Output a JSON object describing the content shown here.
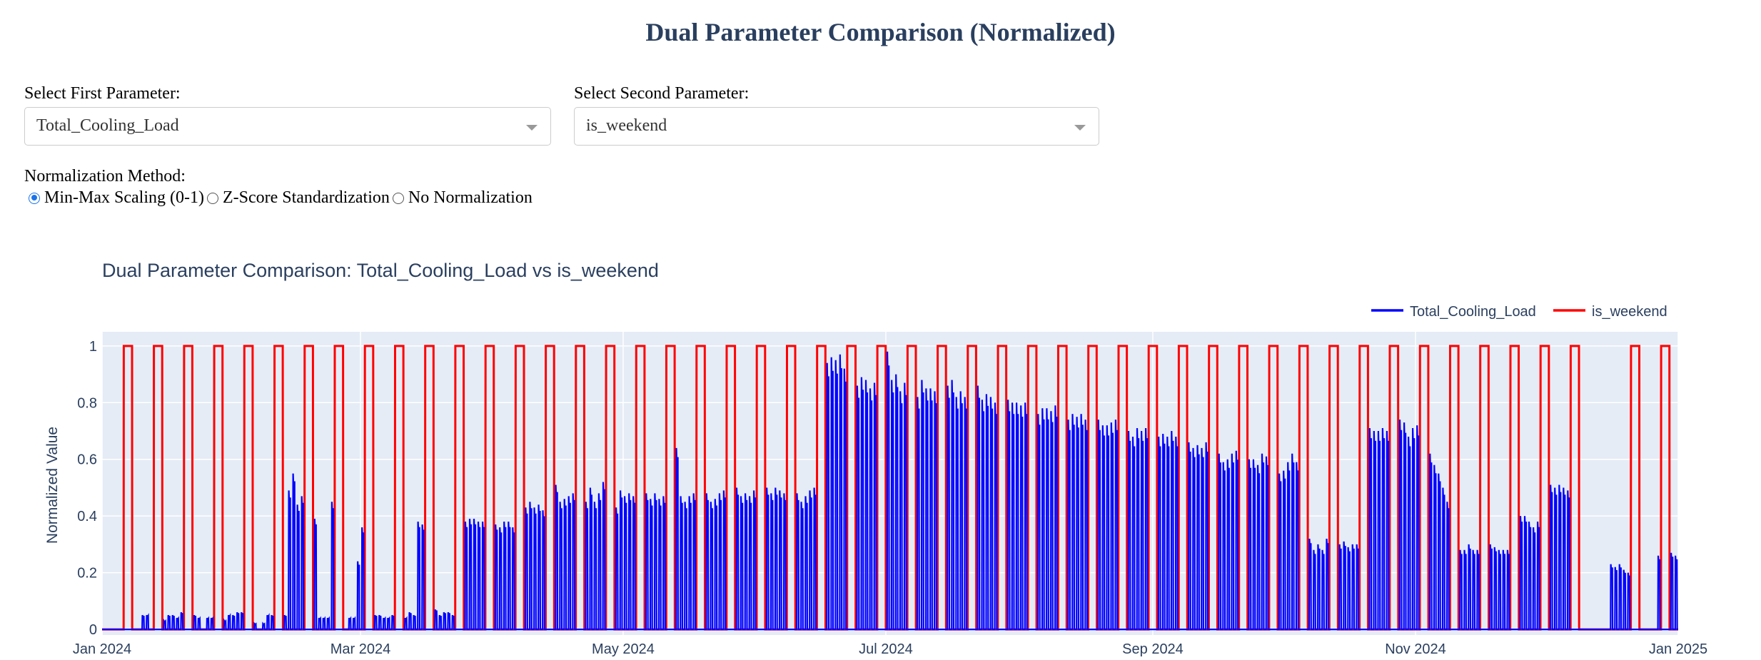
{
  "page": {
    "title": "Dual Parameter Comparison (Normalized)"
  },
  "controls": {
    "first_label": "Select First Parameter:",
    "first_value": "Total_Cooling_Load",
    "second_label": "Select Second Parameter:",
    "second_value": "is_weekend",
    "norm_label": "Normalization Method:",
    "norm_options": [
      "Min-Max Scaling (0-1)",
      "Z-Score Standardization",
      "No Normalization"
    ],
    "norm_selected": "Min-Max Scaling (0-1)"
  },
  "colors": {
    "series1": "#0000ff",
    "series2": "#ff0000",
    "plot_bg": "#e5ecf6",
    "grid": "#ffffff",
    "text": "#2a3f5f"
  },
  "chart_data": {
    "type": "line",
    "title": "Dual Parameter Comparison: Total_Cooling_Load vs is_weekend",
    "xlabel": "",
    "ylabel": "Normalized Value",
    "xlim": [
      "2024-01-01",
      "2025-01-01"
    ],
    "ylim": [
      -0.02,
      1.05
    ],
    "x_ticks": [
      {
        "date": "2024-01-01",
        "label": "Jan 2024"
      },
      {
        "date": "2024-03-01",
        "label": "Mar 2024"
      },
      {
        "date": "2024-05-01",
        "label": "May 2024"
      },
      {
        "date": "2024-07-01",
        "label": "Jul 2024"
      },
      {
        "date": "2024-09-01",
        "label": "Sep 2024"
      },
      {
        "date": "2024-11-01",
        "label": "Nov 2024"
      },
      {
        "date": "2025-01-01",
        "label": "Jan 2025"
      }
    ],
    "y_ticks": [
      0,
      0.2,
      0.4,
      0.6,
      0.8,
      1
    ],
    "y_tick_labels": [
      "0",
      "0.2",
      "0.4",
      "0.6",
      "0.8",
      "1"
    ],
    "grid": true,
    "legend_position": "top-right",
    "series": [
      {
        "name": "Total_Cooling_Load",
        "color": "#0000ff",
        "description_of_shape": "hourly operating-hours load, zero on weekends and nights",
        "x": [
          "2024-01-01",
          "2024-01-02",
          "2024-01-03",
          "2024-01-04",
          "2024-01-05",
          "2024-01-08",
          "2024-01-09",
          "2024-01-10",
          "2024-01-11",
          "2024-01-12",
          "2024-01-15",
          "2024-01-16",
          "2024-01-17",
          "2024-01-18",
          "2024-01-19",
          "2024-01-22",
          "2024-01-23",
          "2024-01-24",
          "2024-01-25",
          "2024-01-26",
          "2024-01-29",
          "2024-01-30",
          "2024-01-31",
          "2024-02-01",
          "2024-02-02",
          "2024-02-05",
          "2024-02-06",
          "2024-02-07",
          "2024-02-08",
          "2024-02-09",
          "2024-02-12",
          "2024-02-13",
          "2024-02-14",
          "2024-02-15",
          "2024-02-16",
          "2024-02-19",
          "2024-02-20",
          "2024-02-21",
          "2024-02-22",
          "2024-02-23",
          "2024-02-26",
          "2024-02-27",
          "2024-02-28",
          "2024-02-29",
          "2024-03-01",
          "2024-03-04",
          "2024-03-05",
          "2024-03-06",
          "2024-03-07",
          "2024-03-08",
          "2024-03-11",
          "2024-03-12",
          "2024-03-13",
          "2024-03-14",
          "2024-03-15",
          "2024-03-18",
          "2024-03-19",
          "2024-03-20",
          "2024-03-21",
          "2024-03-22",
          "2024-03-25",
          "2024-03-26",
          "2024-03-27",
          "2024-03-28",
          "2024-03-29",
          "2024-04-01",
          "2024-04-02",
          "2024-04-03",
          "2024-04-04",
          "2024-04-05",
          "2024-04-08",
          "2024-04-09",
          "2024-04-10",
          "2024-04-11",
          "2024-04-12",
          "2024-04-15",
          "2024-04-16",
          "2024-04-17",
          "2024-04-18",
          "2024-04-19",
          "2024-04-22",
          "2024-04-23",
          "2024-04-24",
          "2024-04-25",
          "2024-04-26",
          "2024-04-29",
          "2024-04-30",
          "2024-05-01",
          "2024-05-02",
          "2024-05-03",
          "2024-05-06",
          "2024-05-07",
          "2024-05-08",
          "2024-05-09",
          "2024-05-10",
          "2024-05-13",
          "2024-05-14",
          "2024-05-15",
          "2024-05-16",
          "2024-05-17",
          "2024-05-20",
          "2024-05-21",
          "2024-05-22",
          "2024-05-23",
          "2024-05-24",
          "2024-05-27",
          "2024-05-28",
          "2024-05-29",
          "2024-05-30",
          "2024-05-31",
          "2024-06-03",
          "2024-06-04",
          "2024-06-05",
          "2024-06-06",
          "2024-06-07",
          "2024-06-10",
          "2024-06-11",
          "2024-06-12",
          "2024-06-13",
          "2024-06-14",
          "2024-06-17",
          "2024-06-18",
          "2024-06-19",
          "2024-06-20",
          "2024-06-21",
          "2024-06-24",
          "2024-06-25",
          "2024-06-26",
          "2024-06-27",
          "2024-06-28",
          "2024-07-01",
          "2024-07-02",
          "2024-07-03",
          "2024-07-04",
          "2024-07-05",
          "2024-07-08",
          "2024-07-09",
          "2024-07-10",
          "2024-07-11",
          "2024-07-12",
          "2024-07-15",
          "2024-07-16",
          "2024-07-17",
          "2024-07-18",
          "2024-07-19",
          "2024-07-22",
          "2024-07-23",
          "2024-07-24",
          "2024-07-25",
          "2024-07-26",
          "2024-07-29",
          "2024-07-30",
          "2024-07-31",
          "2024-08-01",
          "2024-08-02",
          "2024-08-05",
          "2024-08-06",
          "2024-08-07",
          "2024-08-08",
          "2024-08-09",
          "2024-08-12",
          "2024-08-13",
          "2024-08-14",
          "2024-08-15",
          "2024-08-16",
          "2024-08-19",
          "2024-08-20",
          "2024-08-21",
          "2024-08-22",
          "2024-08-23",
          "2024-08-26",
          "2024-08-27",
          "2024-08-28",
          "2024-08-29",
          "2024-08-30",
          "2024-09-02",
          "2024-09-03",
          "2024-09-04",
          "2024-09-05",
          "2024-09-06",
          "2024-09-09",
          "2024-09-10",
          "2024-09-11",
          "2024-09-12",
          "2024-09-13",
          "2024-09-16",
          "2024-09-17",
          "2024-09-18",
          "2024-09-19",
          "2024-09-20",
          "2024-09-23",
          "2024-09-24",
          "2024-09-25",
          "2024-09-26",
          "2024-09-27",
          "2024-09-30",
          "2024-10-01",
          "2024-10-02",
          "2024-10-03",
          "2024-10-04",
          "2024-10-07",
          "2024-10-08",
          "2024-10-09",
          "2024-10-10",
          "2024-10-11",
          "2024-10-14",
          "2024-10-15",
          "2024-10-16",
          "2024-10-17",
          "2024-10-18",
          "2024-10-21",
          "2024-10-22",
          "2024-10-23",
          "2024-10-24",
          "2024-10-25",
          "2024-10-28",
          "2024-10-29",
          "2024-10-30",
          "2024-10-31",
          "2024-11-01",
          "2024-11-04",
          "2024-11-05",
          "2024-11-06",
          "2024-11-07",
          "2024-11-08",
          "2024-11-11",
          "2024-11-12",
          "2024-11-13",
          "2024-11-14",
          "2024-11-15",
          "2024-11-18",
          "2024-11-19",
          "2024-11-20",
          "2024-11-21",
          "2024-11-22",
          "2024-11-25",
          "2024-11-26",
          "2024-11-27",
          "2024-11-28",
          "2024-11-29",
          "2024-12-02",
          "2024-12-03",
          "2024-12-04",
          "2024-12-05",
          "2024-12-06",
          "2024-12-16",
          "2024-12-17",
          "2024-12-18",
          "2024-12-19",
          "2024-12-20",
          "2024-12-27",
          "2024-12-30",
          "2024-12-31"
        ],
        "peak": [
          0,
          0,
          0,
          0,
          0,
          0,
          0,
          0.05,
          0.05,
          0,
          0.03,
          0.05,
          0.05,
          0.04,
          0.06,
          0.05,
          0.04,
          0,
          0.04,
          0.04,
          0.03,
          0.05,
          0.05,
          0.06,
          0.06,
          0.02,
          0,
          0.02,
          0.05,
          0.05,
          0.05,
          0.49,
          0.55,
          0.44,
          0.47,
          0.39,
          0.04,
          0.04,
          0.04,
          0.45,
          0,
          0.04,
          0.04,
          0.24,
          0.36,
          0.05,
          0.05,
          0.04,
          0.04,
          0.05,
          0.04,
          0.06,
          0.05,
          0.38,
          0.37,
          0.07,
          0.05,
          0.06,
          0.06,
          0.05,
          0.38,
          0.39,
          0.39,
          0.38,
          0.38,
          0.37,
          0.36,
          0.38,
          0.38,
          0.36,
          0.43,
          0.45,
          0.43,
          0.44,
          0.42,
          0.51,
          0.45,
          0.46,
          0.47,
          0.48,
          0.45,
          0.5,
          0.45,
          0.48,
          0.52,
          0.43,
          0.49,
          0.47,
          0.48,
          0.47,
          0.48,
          0.46,
          0.48,
          0.46,
          0.47,
          0.64,
          0.47,
          0.45,
          0.47,
          0.48,
          0.48,
          0.45,
          0.46,
          0.48,
          0.49,
          0.5,
          0.47,
          0.48,
          0.47,
          0.49,
          0.5,
          0.48,
          0.5,
          0.49,
          0.48,
          0.48,
          0.45,
          0.47,
          0.49,
          0.5,
          0.94,
          0.96,
          0.95,
          0.97,
          0.92,
          0.86,
          0.89,
          0.88,
          0.85,
          0.87,
          0.98,
          0.88,
          0.9,
          0.84,
          0.87,
          0.82,
          0.88,
          0.85,
          0.85,
          0.84,
          0.86,
          0.88,
          0.82,
          0.84,
          0.82,
          0.86,
          0.81,
          0.83,
          0.82,
          0.8,
          0.81,
          0.8,
          0.8,
          0.79,
          0.8,
          0.76,
          0.78,
          0.78,
          0.77,
          0.79,
          0.74,
          0.76,
          0.75,
          0.76,
          0.74,
          0.74,
          0.72,
          0.72,
          0.73,
          0.74,
          0.7,
          0.68,
          0.71,
          0.7,
          0.71,
          0.68,
          0.69,
          0.68,
          0.7,
          0.68,
          0.66,
          0.64,
          0.65,
          0.64,
          0.66,
          0.62,
          0.59,
          0.6,
          0.62,
          0.63,
          0.6,
          0.6,
          0.58,
          0.62,
          0.61,
          0.55,
          0.56,
          0.59,
          0.62,
          0.59,
          0.32,
          0.28,
          0.3,
          0.28,
          0.32,
          0.3,
          0.31,
          0.29,
          0.3,
          0.3,
          0.71,
          0.7,
          0.7,
          0.71,
          0.7,
          0.74,
          0.73,
          0.68,
          0.71,
          0.72,
          0.62,
          0.58,
          0.55,
          0.5,
          0.45,
          0.28,
          0.28,
          0.3,
          0.28,
          0.28,
          0.3,
          0.29,
          0.28,
          0.28,
          0.28,
          0.4,
          0.4,
          0.38,
          0.36,
          0.38,
          0.51,
          0.5,
          0.51,
          0.5,
          0.49,
          0.23,
          0.22,
          0.23,
          0.21,
          0.2,
          0.26,
          0.27,
          0.26
        ]
      },
      {
        "name": "is_weekend",
        "color": "#ff0000",
        "description_of_shape": "1 on Saturday/Sunday, 0 otherwise",
        "weekend_starts": [
          "2024-01-06",
          "2024-01-13",
          "2024-01-20",
          "2024-01-27",
          "2024-02-03",
          "2024-02-10",
          "2024-02-17",
          "2024-02-24",
          "2024-03-02",
          "2024-03-09",
          "2024-03-16",
          "2024-03-23",
          "2024-03-30",
          "2024-04-06",
          "2024-04-13",
          "2024-04-20",
          "2024-04-27",
          "2024-05-04",
          "2024-05-11",
          "2024-05-18",
          "2024-05-25",
          "2024-06-01",
          "2024-06-08",
          "2024-06-15",
          "2024-06-22",
          "2024-06-29",
          "2024-07-06",
          "2024-07-13",
          "2024-07-20",
          "2024-07-27",
          "2024-08-03",
          "2024-08-10",
          "2024-08-17",
          "2024-08-24",
          "2024-08-31",
          "2024-09-07",
          "2024-09-14",
          "2024-09-21",
          "2024-09-28",
          "2024-10-05",
          "2024-10-12",
          "2024-10-19",
          "2024-10-26",
          "2024-11-02",
          "2024-11-09",
          "2024-11-16",
          "2024-11-23",
          "2024-11-30",
          "2024-12-07",
          "2024-12-21",
          "2024-12-28"
        ]
      }
    ]
  }
}
